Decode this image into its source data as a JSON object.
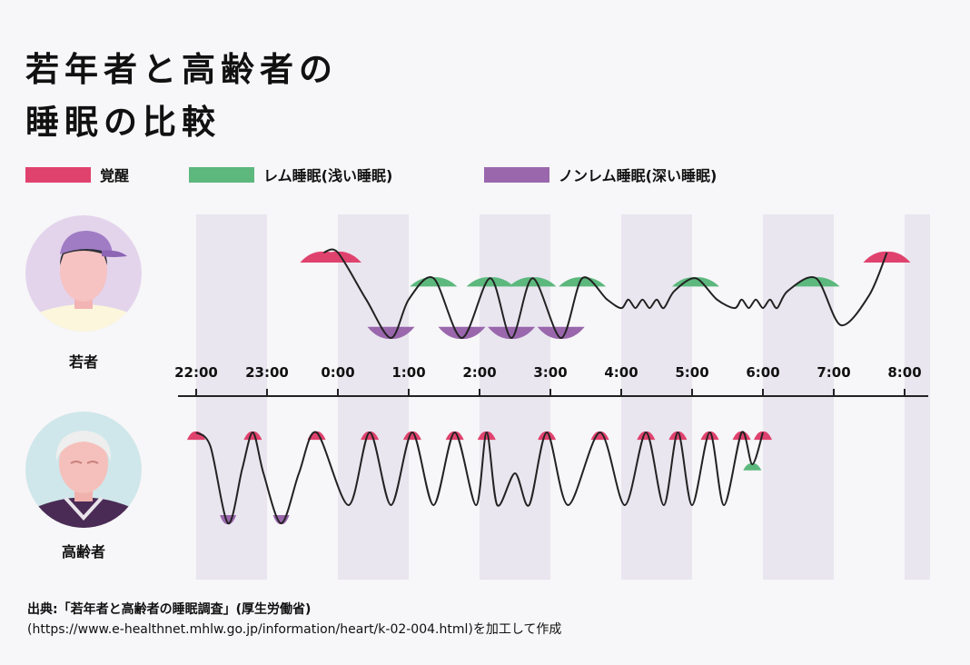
{
  "title": {
    "line1": "若年者と高齢者の",
    "line2": "睡眠の比較"
  },
  "legend": [
    {
      "label": "覚醒",
      "color": "#e0426e"
    },
    {
      "label": "レム睡眠(浅い睡眠)",
      "color": "#5cb87d"
    },
    {
      "label": "ノンレム睡眠(深い睡眠)",
      "color": "#9a67ad"
    }
  ],
  "people": [
    {
      "label": "若者",
      "icon": "young-person-avatar"
    },
    {
      "label": "高齢者",
      "icon": "elderly-person-avatar"
    }
  ],
  "source": {
    "line1": "出典:「若年者と高齢者の睡眠調査」(厚生労働省)",
    "line2": "(https://www.e-healthnet.mhlw.go.jp/information/heart/k-02-004.html)を加工して作成"
  },
  "chart_data": {
    "type": "line",
    "x_unit": "hours since 22:00",
    "time_ticks": [
      "22:00",
      "23:00",
      "0:00",
      "1:00",
      "2:00",
      "3:00",
      "4:00",
      "5:00",
      "6:00",
      "7:00",
      "8:00"
    ],
    "grid": "alternating shaded hour bands",
    "stage_colors": {
      "awake": "#e0426e",
      "rem": "#5cb87d",
      "non_rem": "#9a67ad"
    },
    "series": [
      {
        "name": "若者",
        "x": [
          1.8,
          2.0,
          2.4,
          2.75,
          3.0,
          3.35,
          3.75,
          4.15,
          4.45,
          4.75,
          5.15,
          5.45,
          5.8,
          6.0,
          6.1,
          6.2,
          6.3,
          6.4,
          6.5,
          6.6,
          6.75,
          7.05,
          7.35,
          7.6,
          7.7,
          7.8,
          7.9,
          8.0,
          8.1,
          8.2,
          8.35,
          8.75,
          9.1,
          9.5,
          9.75
        ],
        "depth": [
          0.0,
          0.0,
          0.55,
          1.0,
          0.55,
          0.3,
          1.0,
          0.3,
          1.0,
          0.3,
          1.0,
          0.3,
          0.55,
          0.65,
          0.55,
          0.65,
          0.55,
          0.65,
          0.55,
          0.65,
          0.45,
          0.3,
          0.55,
          0.65,
          0.55,
          0.65,
          0.55,
          0.65,
          0.55,
          0.65,
          0.45,
          0.3,
          0.85,
          0.5,
          0.0
        ]
      },
      {
        "name": "高齢者",
        "x": [
          0.0,
          0.2,
          0.45,
          0.65,
          0.8,
          0.95,
          1.2,
          1.45,
          1.7,
          2.15,
          2.45,
          2.75,
          3.05,
          3.35,
          3.65,
          3.95,
          4.1,
          4.25,
          4.5,
          4.7,
          4.95,
          5.25,
          5.7,
          6.05,
          6.35,
          6.6,
          6.8,
          7.0,
          7.25,
          7.45,
          7.7,
          7.85,
          8.0
        ],
        "depth": [
          0.0,
          0.15,
          1.0,
          0.4,
          0.0,
          0.45,
          1.0,
          0.45,
          0.0,
          0.8,
          0.0,
          0.8,
          0.0,
          0.8,
          0.0,
          0.8,
          0.0,
          0.8,
          0.45,
          0.8,
          0.0,
          0.8,
          0.0,
          0.8,
          0.0,
          0.8,
          0.0,
          0.8,
          0.0,
          0.8,
          0.0,
          0.35,
          0.0
        ]
      }
    ]
  }
}
